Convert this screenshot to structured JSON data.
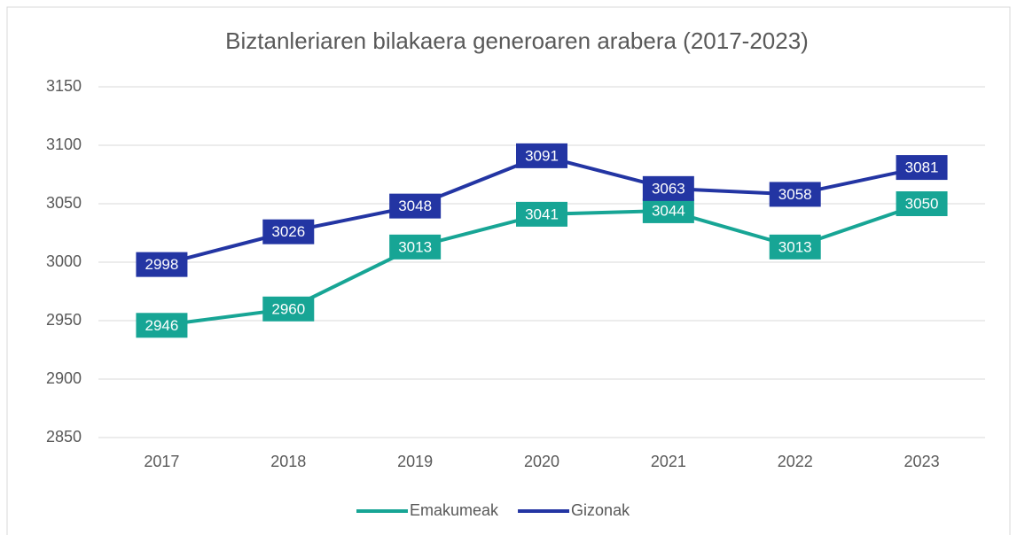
{
  "chart_data": {
    "type": "line",
    "title": "Biztanleriaren bilakaera generoaren arabera (2017-2023)",
    "categories": [
      "2017",
      "2018",
      "2019",
      "2020",
      "2021",
      "2022",
      "2023"
    ],
    "series": [
      {
        "name": "Emakumeak",
        "color": "#17a595",
        "values": [
          2946,
          2960,
          3013,
          3041,
          3044,
          3013,
          3050
        ]
      },
      {
        "name": "Gizonak",
        "color": "#2335a3",
        "values": [
          2998,
          3026,
          3048,
          3091,
          3063,
          3058,
          3081
        ]
      }
    ],
    "ylim": [
      2850,
      3150
    ],
    "yticks": [
      2850,
      2900,
      2950,
      3000,
      3050,
      3100,
      3150
    ],
    "grid": true,
    "legend": "bottom"
  }
}
